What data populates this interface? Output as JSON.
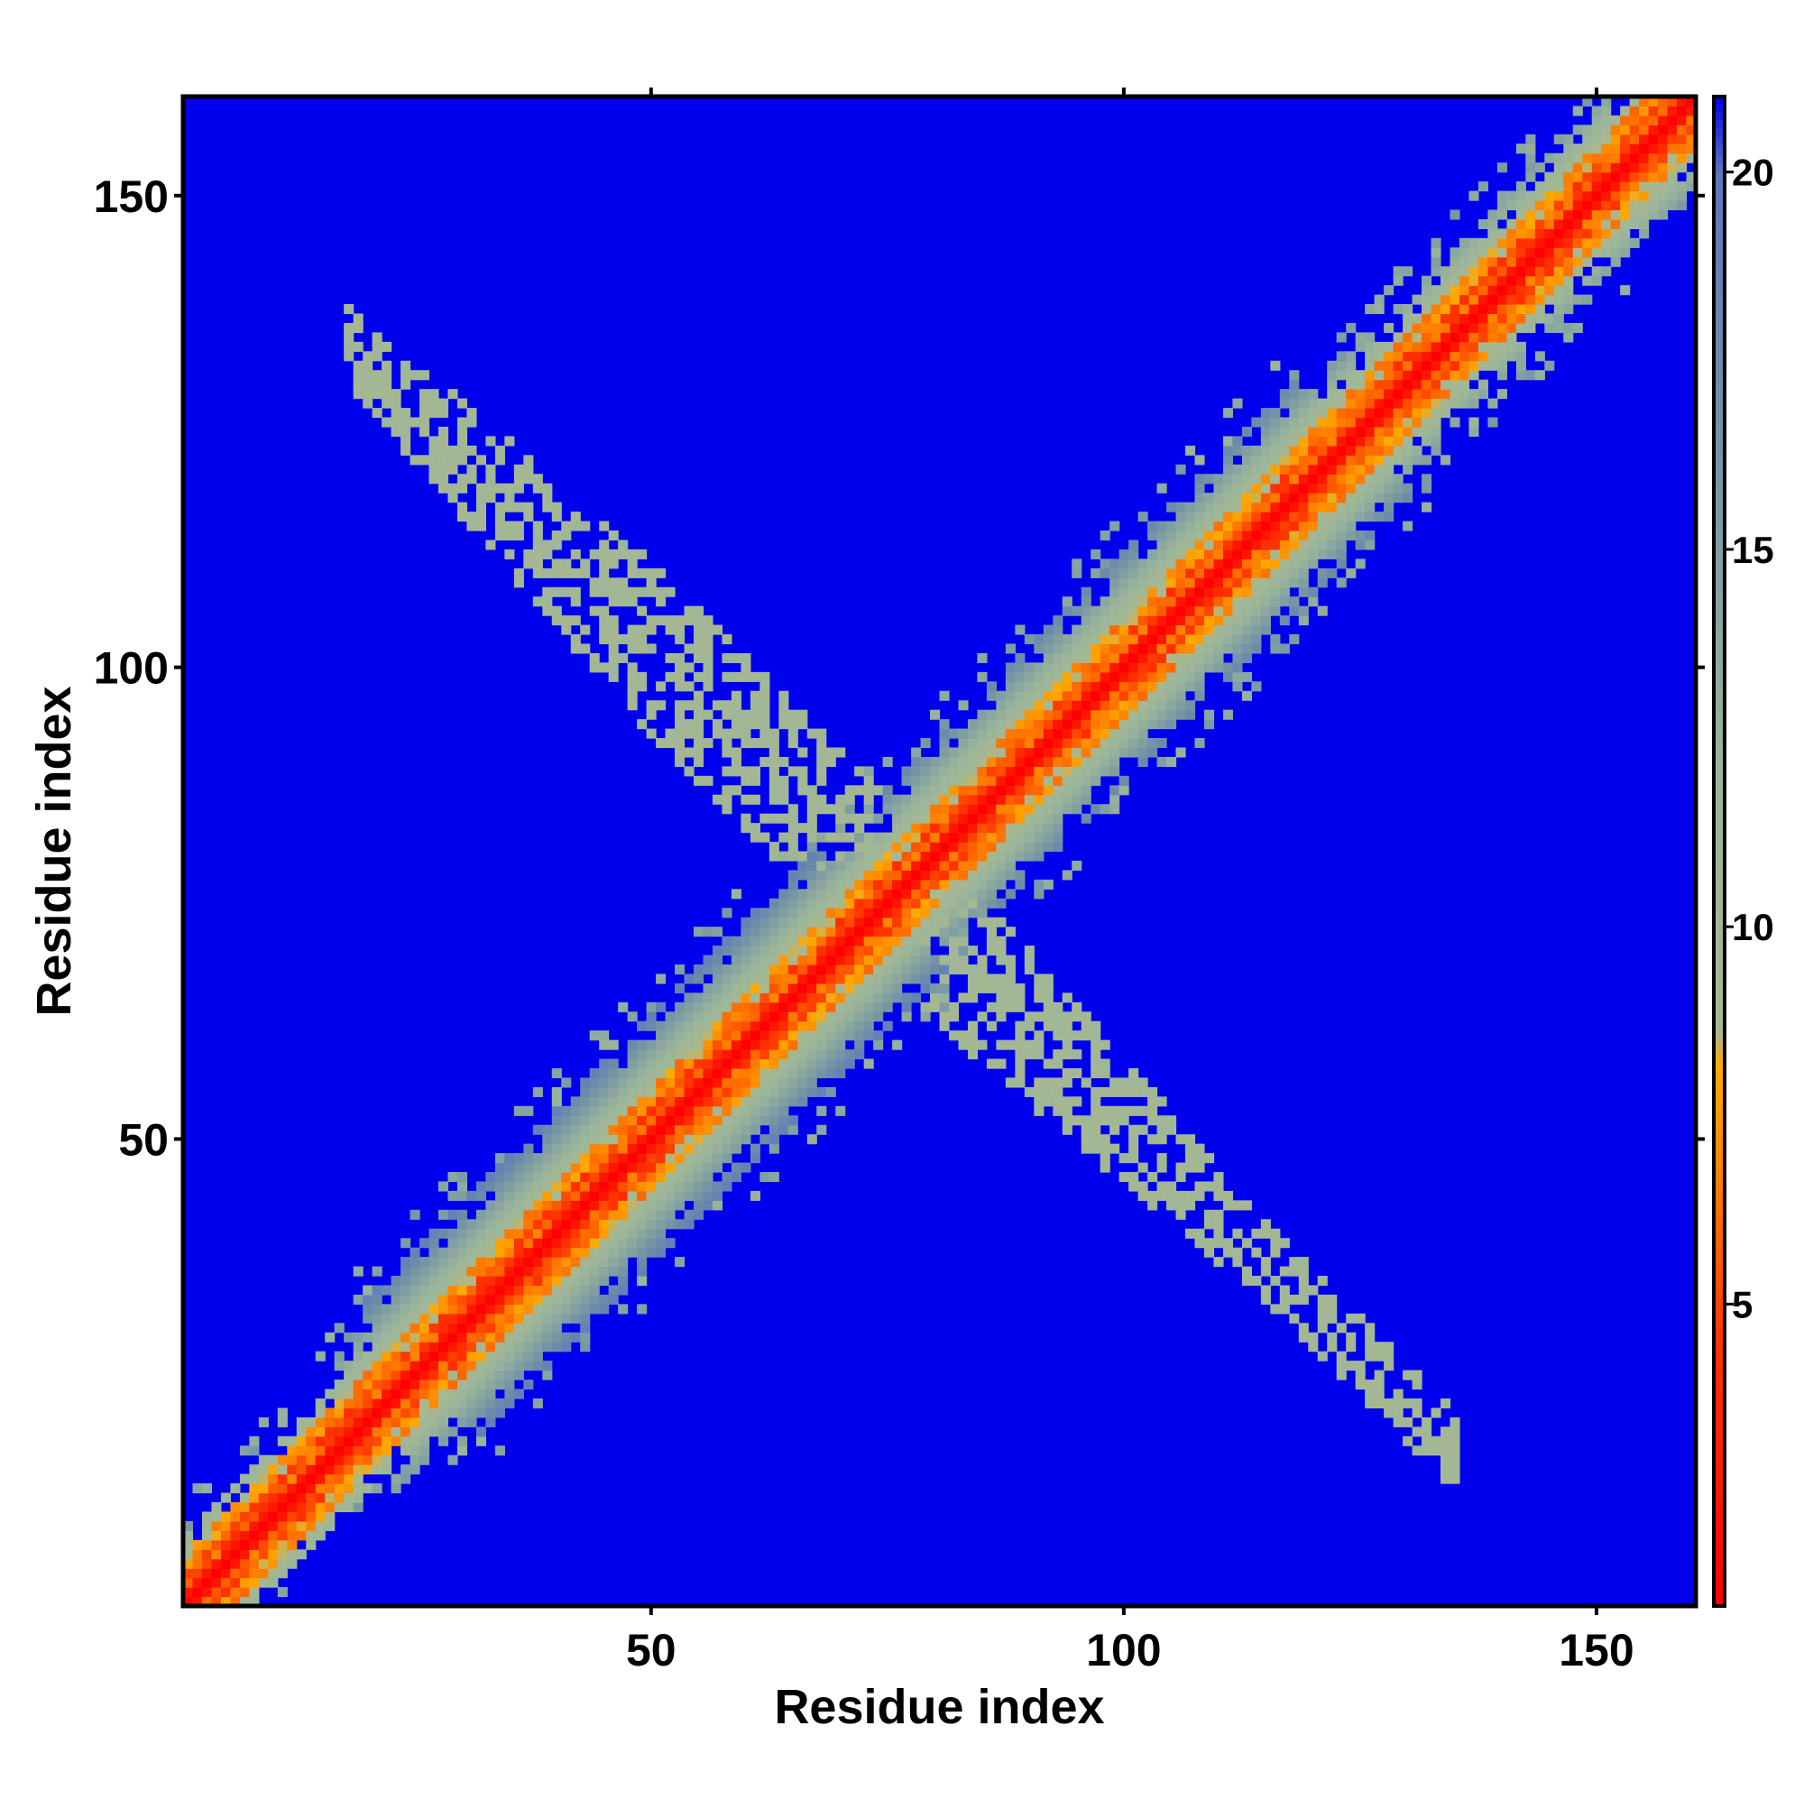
{
  "chart_data": {
    "type": "heatmap",
    "title": "",
    "xlabel": "Residue index",
    "ylabel": "Residue index",
    "x_range": [
      1,
      160
    ],
    "y_range": [
      1,
      160
    ],
    "xticks": [
      50,
      100,
      150
    ],
    "yticks": [
      50,
      100,
      150
    ],
    "grid": false,
    "description_of_values": "contact/distance map: value ~1 on diagonal, increasing away from diagonal; anti-diagonal sparse band at values ~9-11; background 21",
    "colorbar": {
      "range": [
        1,
        21
      ],
      "ticks": [
        5,
        10,
        15,
        20
      ],
      "placement": "right",
      "stops": [
        {
          "value": 1,
          "color": "#ff0000"
        },
        {
          "value": 4.5,
          "color": "#ff3300"
        },
        {
          "value": 7,
          "color": "#ff8800"
        },
        {
          "value": 8.2,
          "color": "#ffaa00"
        },
        {
          "value": 8.6,
          "color": "#a8b890"
        },
        {
          "value": 12,
          "color": "#9bb59a"
        },
        {
          "value": 17,
          "color": "#6f8ea8"
        },
        {
          "value": 20,
          "color": "#5a78c0"
        },
        {
          "value": 21,
          "color": "#0000ee"
        }
      ]
    },
    "bands": {
      "diagonal": {
        "from": [
          1,
          1
        ],
        "to": [
          160,
          160
        ]
      },
      "anti_diagonal": {
        "from": [
          18,
          134
        ],
        "to": [
          135,
          19
        ],
        "values": [
          9,
          11
        ]
      }
    }
  }
}
